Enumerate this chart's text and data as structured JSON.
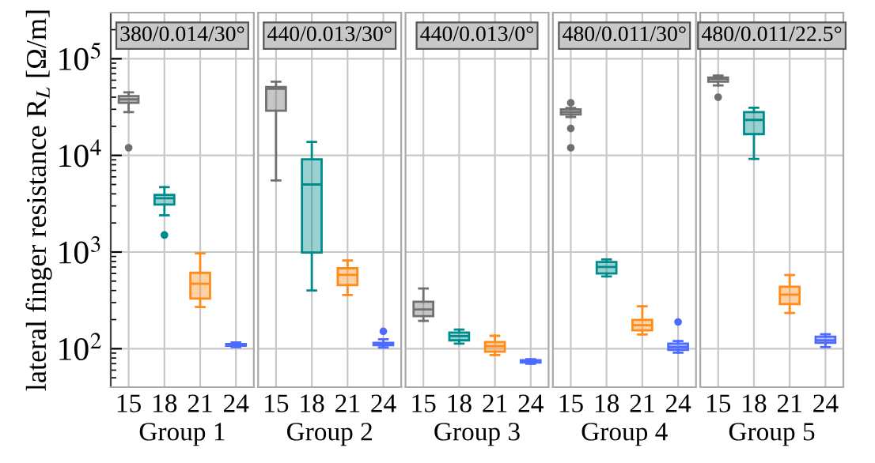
{
  "chart_data": [
    {
      "type": "box",
      "title": "380/0.014/30°",
      "xlabel": "Group 1",
      "ylabel": "lateral finger resistance R$_{L}$ [Ω/m]",
      "categories": [
        "15",
        "18",
        "21",
        "24"
      ],
      "colors": [
        "#707070",
        "#008b8b",
        "#ff8c1a",
        "#4d6bff"
      ],
      "log": true,
      "grid": true,
      "legend": false,
      "ylim": [
        40,
        300000
      ],
      "yticks": [
        {
          "value": 100,
          "label": "10$^{2}$"
        },
        {
          "value": 1000,
          "label": "10$^{3}$"
        },
        {
          "value": 10000,
          "label": "10$^{4}$"
        },
        {
          "value": 100000,
          "label": "10$^{5}$"
        }
      ],
      "boxes": [
        {
          "low": 28000,
          "q1": 35000,
          "median": 38000,
          "q3": 41000,
          "high": 45000,
          "outliers": [
            12000
          ]
        },
        {
          "low": 2400,
          "q1": 3100,
          "median": 3600,
          "q3": 3900,
          "high": 4700,
          "outliers": [
            1500
          ]
        },
        {
          "low": 270,
          "q1": 330,
          "median": 470,
          "q3": 610,
          "high": 970
        },
        {
          "low": 104,
          "q1": 107,
          "median": 110,
          "q3": 112,
          "high": 116
        }
      ]
    },
    {
      "type": "box",
      "title": "440/0.013/30°",
      "xlabel": "Group 2",
      "categories": [
        "15",
        "18",
        "21",
        "24"
      ],
      "colors": [
        "#707070",
        "#008b8b",
        "#ff8c1a",
        "#4d6bff"
      ],
      "log": true,
      "grid": true,
      "legend": false,
      "tick_labels": "x",
      "ylim": [
        40,
        300000
      ],
      "boxes": [
        {
          "low": 5500,
          "q1": 29000,
          "median": 49000,
          "q3": 51000,
          "high": 58000
        },
        {
          "low": 400,
          "q1": 990,
          "median": 5000,
          "q3": 9100,
          "high": 13800
        },
        {
          "low": 360,
          "q1": 454,
          "median": 580,
          "q3": 680,
          "high": 820
        },
        {
          "low": 103,
          "q1": 109,
          "median": 112,
          "q3": 115,
          "high": 125,
          "outliers": [
            151
          ]
        }
      ]
    },
    {
      "type": "box",
      "title": "440/0.013/0°",
      "xlabel": "Group 3",
      "categories": [
        "15",
        "18",
        "21",
        "24"
      ],
      "colors": [
        "#707070",
        "#008b8b",
        "#ff8c1a",
        "#4d6bff"
      ],
      "log": true,
      "grid": true,
      "legend": false,
      "tick_labels": "x",
      "ylim": [
        40,
        300000
      ],
      "boxes": [
        {
          "low": 194,
          "q1": 217,
          "median": 255,
          "q3": 306,
          "high": 420
        },
        {
          "low": 113,
          "q1": 122,
          "median": 135,
          "q3": 147,
          "high": 158
        },
        {
          "low": 86,
          "q1": 93,
          "median": 106,
          "q3": 117,
          "high": 136
        },
        {
          "low": 70,
          "q1": 72,
          "median": 74,
          "q3": 76,
          "high": 78
        }
      ]
    },
    {
      "type": "box",
      "title": "480/0.011/30°",
      "xlabel": "Group 4",
      "categories": [
        "15",
        "18",
        "21",
        "24"
      ],
      "colors": [
        "#707070",
        "#008b8b",
        "#ff8c1a",
        "#4d6bff"
      ],
      "log": true,
      "grid": true,
      "legend": false,
      "tick_labels": "x",
      "ylim": [
        40,
        300000
      ],
      "boxes": [
        {
          "low": 25000,
          "q1": 26500,
          "median": 28000,
          "q3": 30000,
          "high": 31000,
          "outliers": [
            35000,
            19000,
            12000
          ]
        },
        {
          "low": 560,
          "q1": 600,
          "median": 700,
          "q3": 790,
          "high": 840
        },
        {
          "low": 140,
          "q1": 155,
          "median": 175,
          "q3": 199,
          "high": 275
        },
        {
          "low": 91,
          "q1": 97,
          "median": 104,
          "q3": 113,
          "high": 120,
          "outliers": [
            189
          ]
        }
      ]
    },
    {
      "type": "box",
      "title": "480/0.011/22.5°",
      "xlabel": "Group 5",
      "categories": [
        "15",
        "18",
        "21",
        "24"
      ],
      "colors": [
        "#707070",
        "#008b8b",
        "#ff8c1a",
        "#4d6bff"
      ],
      "log": true,
      "grid": true,
      "legend": false,
      "tick_labels": "x",
      "ylim": [
        40,
        300000
      ],
      "boxes": [
        {
          "low": 53000,
          "q1": 58000,
          "median": 62000,
          "q3": 64000,
          "high": 67000,
          "outliers": [
            40000
          ]
        },
        {
          "low": 9200,
          "q1": 16600,
          "median": 23300,
          "q3": 28100,
          "high": 31100
        },
        {
          "low": 234,
          "q1": 289,
          "median": 362,
          "q3": 438,
          "high": 577
        },
        {
          "low": 104,
          "q1": 115,
          "median": 122,
          "q3": 133,
          "high": 141
        }
      ]
    }
  ]
}
